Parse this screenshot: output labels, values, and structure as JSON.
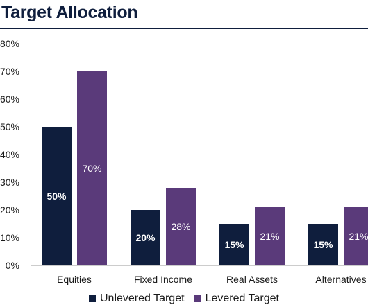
{
  "chart_data": {
    "type": "bar",
    "title": "Target Allocation",
    "categories": [
      "Equities",
      "Fixed Income",
      "Real Assets",
      "Alternatives"
    ],
    "series": [
      {
        "name": "Unlevered Target",
        "values": [
          50,
          20,
          15,
          15
        ],
        "labels": [
          "50%",
          "20%",
          "15%",
          "15%"
        ],
        "color": "#0f1e3d",
        "label_bold": true
      },
      {
        "name": "Levered Target",
        "values": [
          70,
          28,
          21,
          21
        ],
        "labels": [
          "70%",
          "28%",
          "21%",
          "21%"
        ],
        "color": "#5a3a7a",
        "label_bold": false
      }
    ],
    "ylim": [
      0,
      80
    ],
    "yticks": [
      "0%",
      "10%",
      "20%",
      "30%",
      "40%",
      "50%",
      "60%",
      "70%",
      "80%"
    ],
    "grid": false,
    "legend_position": "bottom"
  }
}
